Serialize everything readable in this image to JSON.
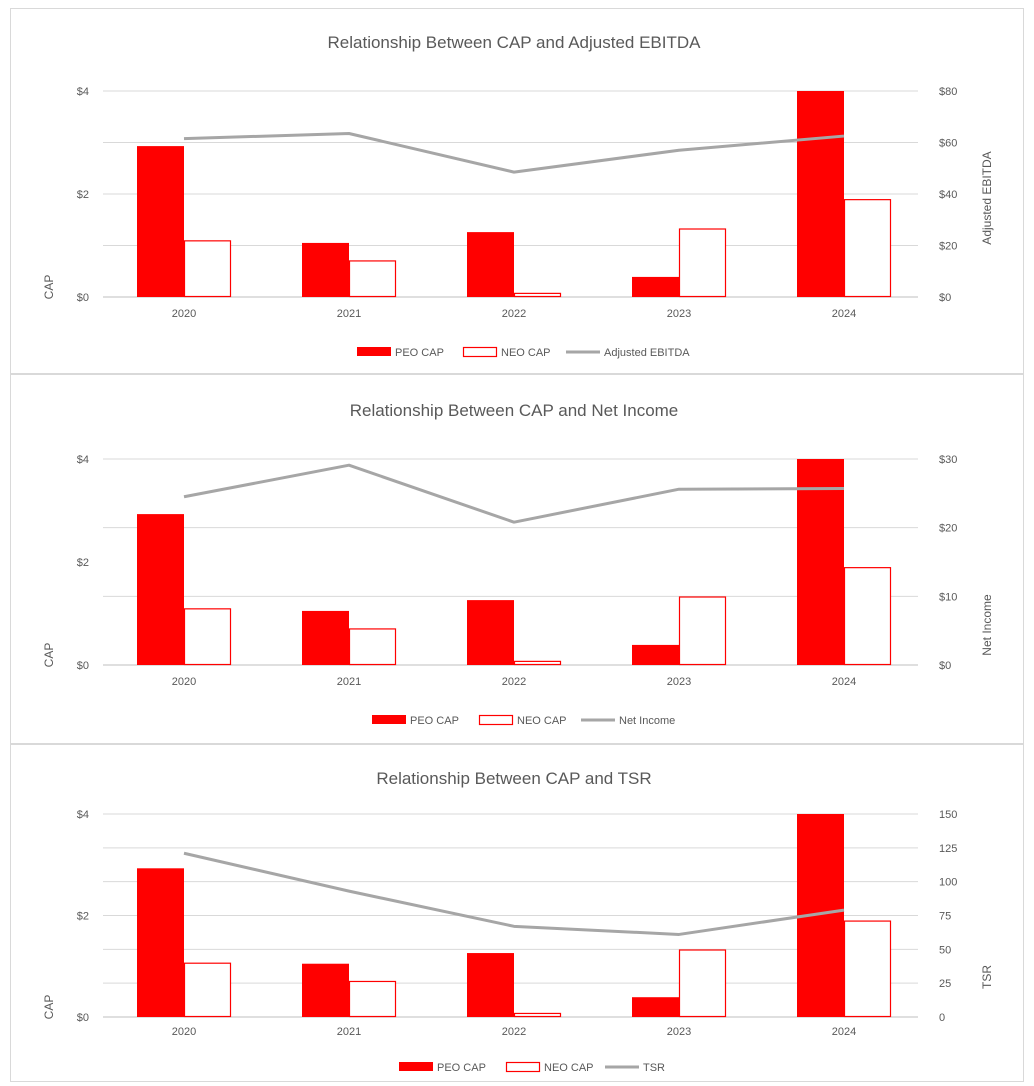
{
  "chart_data": [
    {
      "type": "bar",
      "title": "Relationship Between CAP and Adjusted EBITDA",
      "categories": [
        "2020",
        "2021",
        "2022",
        "2023",
        "2024"
      ],
      "ylabel": "CAP",
      "ylabel_right": "Adjusted EBITDA",
      "ylim": [
        0,
        4
      ],
      "yticks": [
        "$0",
        "$2",
        "$4"
      ],
      "y2lim": [
        0,
        80
      ],
      "y2ticks": [
        "$0",
        "$20",
        "$40",
        "$60",
        "$80"
      ],
      "grid": true,
      "legend": "bottom",
      "series": [
        {
          "name": "PEO CAP",
          "kind": "bar",
          "fill": "#ff0000",
          "values": [
            2.93,
            1.05,
            1.26,
            0.39,
            4.0
          ]
        },
        {
          "name": "NEO CAP",
          "kind": "bar-outline",
          "fill": "#ff0000",
          "values": [
            1.1,
            0.71,
            0.08,
            1.33,
            1.9
          ]
        },
        {
          "name": "Adjusted EBITDA",
          "kind": "line",
          "axis": "right",
          "color": "#a6a6a6",
          "values": [
            61.5,
            63.5,
            48.5,
            57,
            62.5
          ]
        }
      ]
    },
    {
      "type": "bar",
      "title": "Relationship Between CAP and Net Income",
      "categories": [
        "2020",
        "2021",
        "2022",
        "2023",
        "2024"
      ],
      "ylabel": "CAP",
      "ylabel_right": "Net Income",
      "ylim": [
        0,
        4
      ],
      "yticks": [
        "$0",
        "$2",
        "$4"
      ],
      "y2lim": [
        0,
        30
      ],
      "y2ticks": [
        "$0",
        "$10",
        "$20",
        "$30"
      ],
      "grid": true,
      "legend": "bottom",
      "series": [
        {
          "name": "PEO CAP",
          "kind": "bar",
          "fill": "#ff0000",
          "values": [
            2.93,
            1.05,
            1.26,
            0.39,
            4.0
          ]
        },
        {
          "name": "NEO CAP",
          "kind": "bar-outline",
          "fill": "#ff0000",
          "values": [
            1.1,
            0.71,
            0.08,
            1.33,
            1.9
          ]
        },
        {
          "name": "Net Income",
          "kind": "line",
          "axis": "right",
          "color": "#a6a6a6",
          "values": [
            24.5,
            29.1,
            20.8,
            25.6,
            25.7
          ]
        }
      ]
    },
    {
      "type": "bar",
      "title": "Relationship Between CAP and TSR",
      "categories": [
        "2020",
        "2021",
        "2022",
        "2023",
        "2024"
      ],
      "ylabel": "CAP",
      "ylabel_right": "TSR",
      "ylim": [
        0,
        4
      ],
      "yticks": [
        "$0",
        "$2",
        "$4"
      ],
      "y2lim": [
        0,
        150
      ],
      "y2ticks": [
        "0",
        "25",
        "50",
        "75",
        "100",
        "125",
        "150"
      ],
      "grid": true,
      "legend": "bottom",
      "series": [
        {
          "name": "PEO CAP",
          "kind": "bar",
          "fill": "#ff0000",
          "values": [
            2.93,
            1.05,
            1.26,
            0.39,
            4.0
          ]
        },
        {
          "name": "NEO CAP",
          "kind": "bar-outline",
          "fill": "#ff0000",
          "values": [
            1.07,
            0.71,
            0.08,
            1.33,
            1.9
          ]
        },
        {
          "name": "TSR",
          "kind": "line",
          "axis": "right",
          "color": "#a6a6a6",
          "values": [
            121,
            93,
            67,
            61,
            79
          ]
        }
      ]
    }
  ]
}
